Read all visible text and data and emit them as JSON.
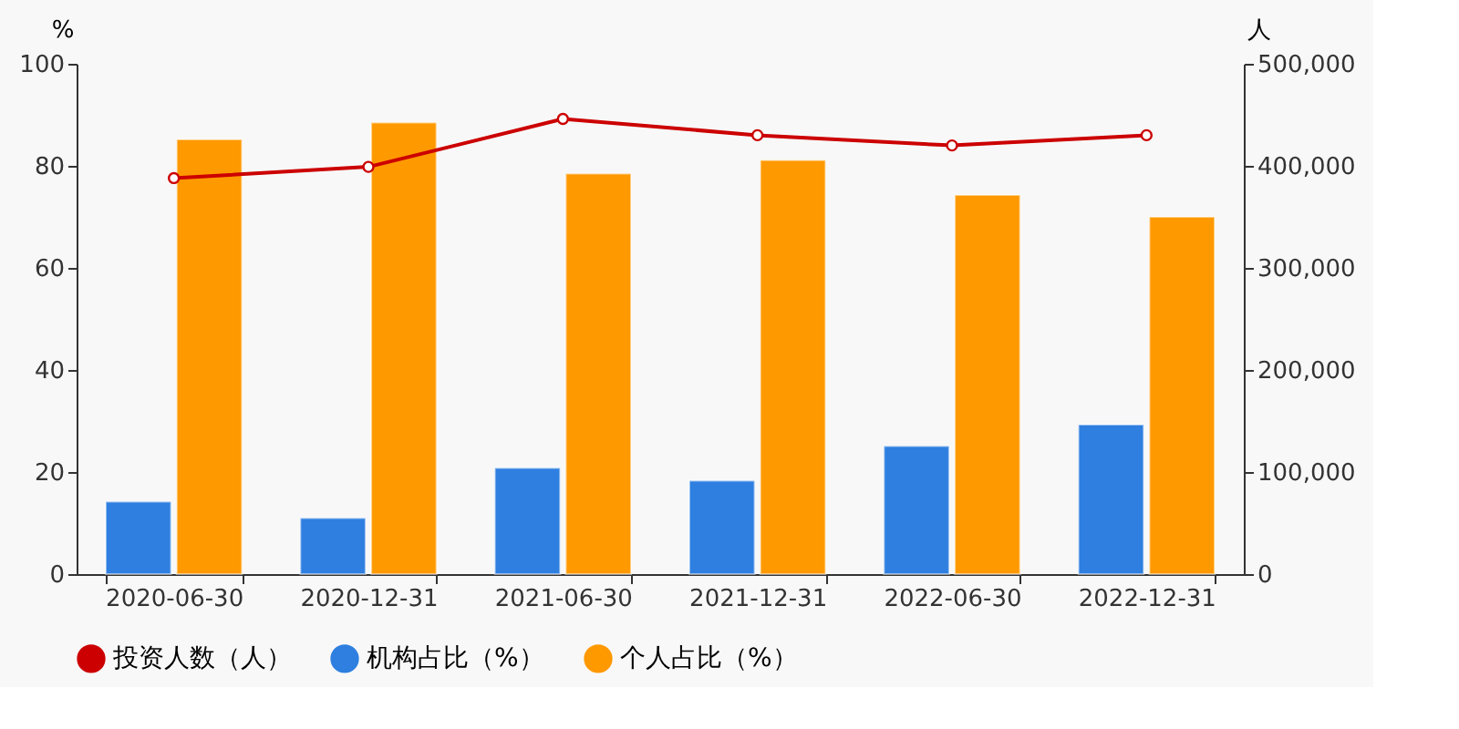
{
  "chart_data": {
    "type": "bar",
    "ylabel": "%",
    "y2label": "人",
    "categories": [
      "2020-06-30",
      "2020-12-31",
      "2021-06-30",
      "2021-12-31",
      "2022-06-30",
      "2022-12-31"
    ],
    "series": [
      {
        "name": "投资人数（人）",
        "type": "line",
        "axis": "y2",
        "color": "#cc0000",
        "marker": "circle",
        "values": [
          388000,
          399000,
          446000,
          430000,
          420000,
          430000
        ]
      },
      {
        "name": "机构占比（%）",
        "color": "#2e7fe0",
        "values": [
          14.2,
          11.0,
          20.8,
          18.3,
          25.1,
          29.3
        ]
      },
      {
        "name": "个人占比（%）",
        "color": "#ff9900",
        "values": [
          85.2,
          88.5,
          78.5,
          81.1,
          74.3,
          70.0
        ]
      }
    ],
    "ylim": [
      0,
      100
    ],
    "yticks": [
      0,
      20,
      40,
      60,
      80,
      100
    ],
    "y2lim": [
      0,
      500000
    ],
    "y2ticks": [
      0,
      {
        "value": 100000,
        "label": "100,000"
      },
      {
        "value": 200000,
        "label": "200,000"
      },
      {
        "value": 300000,
        "label": "300,000"
      },
      {
        "value": 400000,
        "label": "400,000"
      },
      {
        "value": 500000,
        "label": "500,000"
      }
    ],
    "grid": false,
    "legend": "bottom"
  }
}
